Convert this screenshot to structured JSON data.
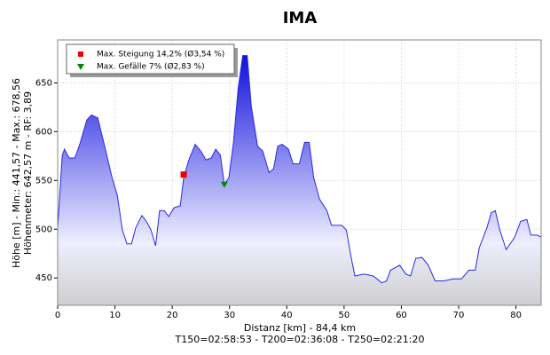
{
  "chart_data": {
    "type": "area",
    "title": "IMA",
    "x_label": "Distanz [km] - 84,4 km",
    "x_label2": "T150=02:58:53 - T200=02:36:08 - T250=02:21:20",
    "y_label": "Höhe [m] - Min.: 441,57 - Max.: 678,56",
    "y_label2": "Höhenmeter: 642,57 m - RF: 3,89",
    "color": "#2a2ae6",
    "x": [
      0,
      0.8,
      1.2,
      2,
      3,
      3.9,
      5.1,
      5.9,
      7,
      8.2,
      9.5,
      10.4,
      11.3,
      12.1,
      12.9,
      13.6,
      14.7,
      15.5,
      16.3,
      17.1,
      17.8,
      18.6,
      19.4,
      20.3,
      21.4,
      22,
      22.9,
      24,
      25,
      25.9,
      26.8,
      27.6,
      28.4,
      29.1,
      29.9,
      30.7,
      31.5,
      32.3,
      33.1,
      33.8,
      34.9,
      35.8,
      36.9,
      37.7,
      38.4,
      39.2,
      40.3,
      41.1,
      42.2,
      43.1,
      43.9,
      44.7,
      45.7,
      47,
      47.8,
      49.6,
      50.4,
      51.2,
      51.9,
      53.5,
      55.1,
      56.6,
      57.4,
      58.1,
      59.7,
      60.8,
      61.6,
      62.5,
      63.6,
      64.7,
      65.9,
      67.4,
      69,
      70.5,
      71.8,
      72.9,
      73.6,
      74.9,
      75.7,
      76.4,
      77.2,
      78.3,
      79.8,
      80.8,
      81.9,
      82.6,
      83.7,
      84.4
    ],
    "values": [
      501,
      576,
      582,
      573,
      573,
      588,
      612,
      617,
      614,
      585,
      553,
      535,
      499,
      485,
      485,
      501,
      514,
      508,
      499,
      483,
      519,
      519,
      513,
      522,
      524,
      553,
      571,
      587,
      580,
      571,
      573,
      582,
      576,
      546,
      553,
      589,
      644,
      678,
      678,
      626,
      585,
      580,
      558,
      562,
      585,
      587,
      582,
      567,
      567,
      589,
      589,
      553,
      531,
      519,
      504,
      504,
      499,
      472,
      452,
      454,
      452,
      445,
      447,
      458,
      463,
      454,
      452,
      470,
      471,
      463,
      447,
      447,
      449,
      449,
      458,
      458,
      481,
      501,
      517,
      519,
      499,
      479,
      492,
      508,
      510,
      494,
      494,
      492
    ],
    "markers": [
      {
        "name": "Max. Steigung 14,2% (Ø3,54 %)",
        "color": "#ee0000",
        "shape": "square",
        "x": 22,
        "y": 556
      },
      {
        "name": "Max. Gefälle 7% (Ø2,83 %)",
        "color": "#008800",
        "shape": "triangle",
        "x": 29.1,
        "y": 546
      }
    ],
    "xlim": [
      0,
      84.4
    ],
    "xticks": [
      0,
      10,
      20,
      30,
      40,
      50,
      60,
      70,
      80
    ],
    "ylim": [
      422,
      694
    ],
    "yticks": [
      450,
      500,
      550,
      600,
      650
    ],
    "grid": true,
    "legend": "top-left"
  }
}
